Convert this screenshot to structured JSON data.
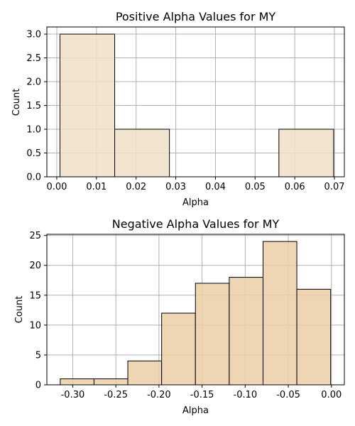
{
  "chart_data": [
    {
      "type": "bar",
      "title": "Positive Alpha Values for MY",
      "xlabel": "Alpha",
      "ylabel": "Count",
      "xlim": [
        -0.0025,
        0.0725
      ],
      "ylim": [
        0,
        3.15
      ],
      "xticks": [
        "0.00",
        "0.01",
        "0.02",
        "0.03",
        "0.04",
        "0.05",
        "0.06",
        "0.07"
      ],
      "xtick_values": [
        0,
        0.01,
        0.02,
        0.03,
        0.04,
        0.05,
        0.06,
        0.07
      ],
      "yticks": [
        "0.0",
        "0.5",
        "1.0",
        "1.5",
        "2.0",
        "2.5",
        "3.0"
      ],
      "ytick_values": [
        0,
        0.5,
        1.0,
        1.5,
        2.0,
        2.5,
        3.0
      ],
      "grid": true,
      "bar_color": "#f0e0c8",
      "bins": [
        {
          "x0": 0.0008,
          "x1": 0.0146,
          "count": 3
        },
        {
          "x0": 0.0146,
          "x1": 0.0284,
          "count": 1
        },
        {
          "x0": 0.0284,
          "x1": 0.0422,
          "count": 0
        },
        {
          "x0": 0.0422,
          "x1": 0.056,
          "count": 0
        },
        {
          "x0": 0.056,
          "x1": 0.0698,
          "count": 1
        }
      ]
    },
    {
      "type": "bar",
      "title": "Negative Alpha Values for MY",
      "xlabel": "Alpha",
      "ylabel": "Count",
      "xlim": [
        -0.33,
        0.015
      ],
      "ylim": [
        0,
        25.2
      ],
      "xticks": [
        "-0.30",
        "-0.25",
        "-0.20",
        "-0.15",
        "-0.10",
        "-0.05",
        "0.00"
      ],
      "xtick_values": [
        -0.3,
        -0.25,
        -0.2,
        -0.15,
        -0.1,
        -0.05,
        0.0
      ],
      "yticks": [
        "0",
        "5",
        "10",
        "15",
        "20",
        "25"
      ],
      "ytick_values": [
        0,
        5,
        10,
        15,
        20,
        25
      ],
      "grid": true,
      "bar_color": "#ebcfa8",
      "bins": [
        {
          "x0": -0.3145,
          "x1": -0.2753,
          "count": 1
        },
        {
          "x0": -0.2753,
          "x1": -0.2361,
          "count": 1
        },
        {
          "x0": -0.2361,
          "x1": -0.1969,
          "count": 4
        },
        {
          "x0": -0.1969,
          "x1": -0.1577,
          "count": 12
        },
        {
          "x0": -0.1577,
          "x1": -0.1185,
          "count": 17
        },
        {
          "x0": -0.1185,
          "x1": -0.0793,
          "count": 18
        },
        {
          "x0": -0.0793,
          "x1": -0.0401,
          "count": 24
        },
        {
          "x0": -0.0401,
          "x1": -0.0009,
          "count": 16
        }
      ]
    }
  ]
}
